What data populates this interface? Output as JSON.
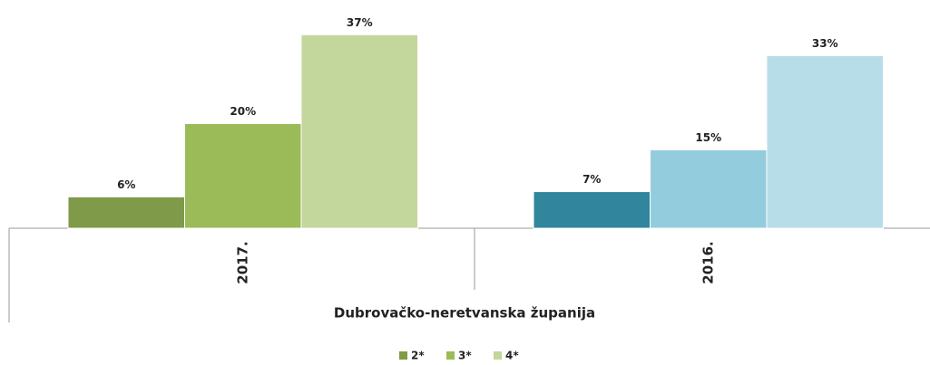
{
  "chart_data": {
    "type": "bar",
    "categories": [
      "2017.",
      "2016."
    ],
    "group_label": "Dubrovačko-neretvanska županija",
    "series": [
      {
        "name": "2*",
        "color": "#7f9a48",
        "point_colors": [
          "#7f9a48",
          "#31859c"
        ],
        "values": [
          6,
          7
        ],
        "value_labels": [
          "6%",
          "7%"
        ]
      },
      {
        "name": "3*",
        "color": "#9bbb59",
        "point_colors": [
          "#9bbb59",
          "#93cddd"
        ],
        "values": [
          20,
          15
        ],
        "value_labels": [
          "20%",
          "15%"
        ]
      },
      {
        "name": "4*",
        "color": "#c3d69b",
        "point_colors": [
          "#c3d69b",
          "#b7dde8"
        ],
        "values": [
          37,
          33
        ],
        "value_labels": [
          "37%",
          "33%"
        ]
      }
    ],
    "ylim": [
      0,
      40
    ],
    "legend": "bottom"
  }
}
